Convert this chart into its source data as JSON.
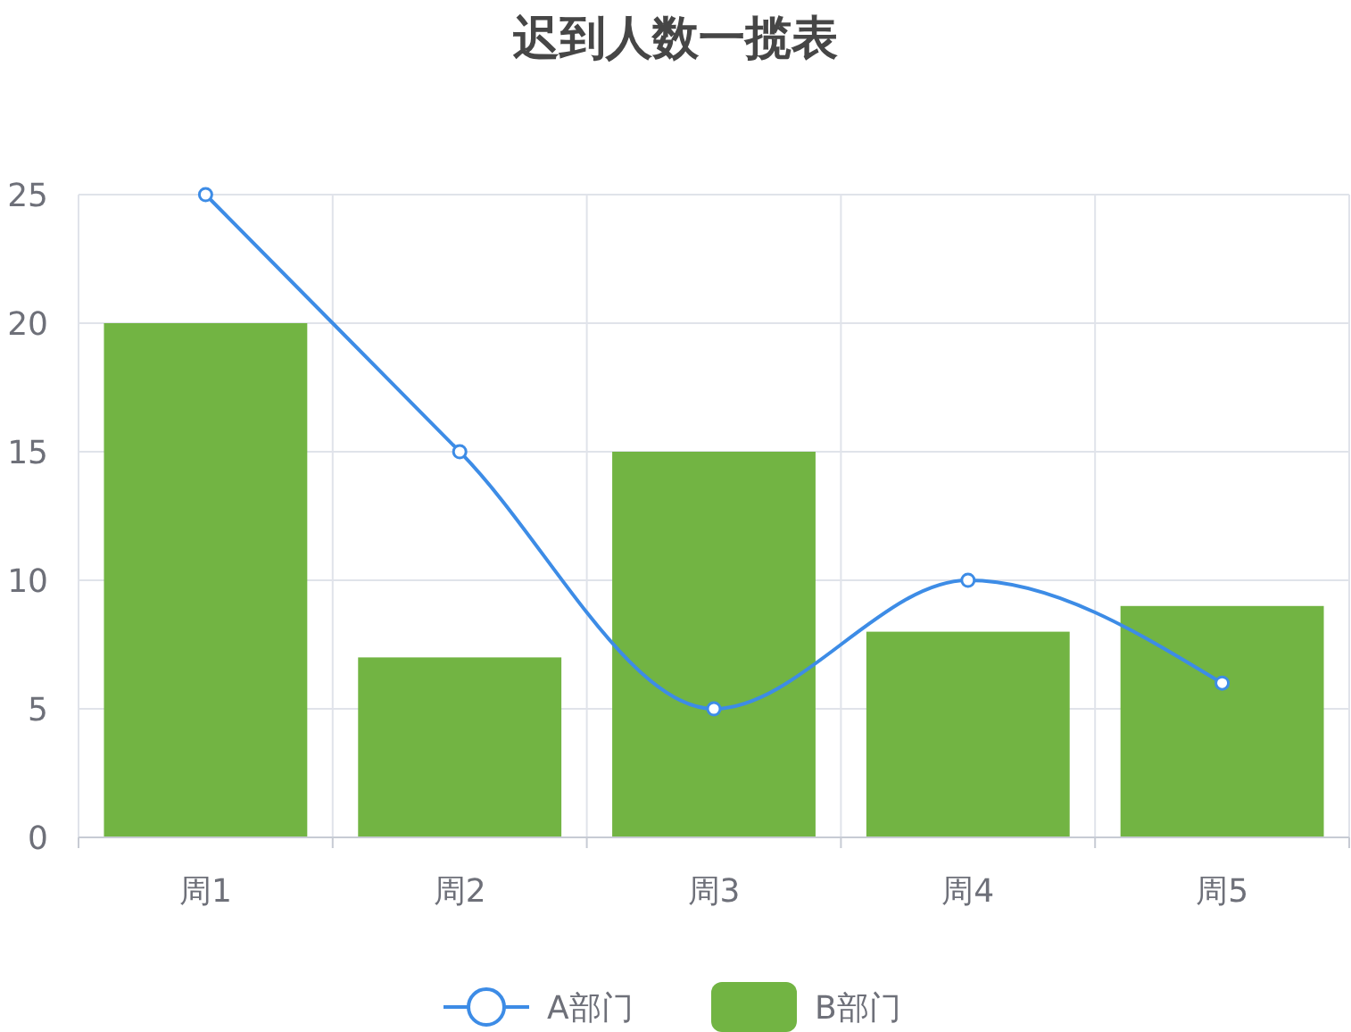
{
  "chart_data": {
    "type": "bar",
    "title": "迟到人数一揽表",
    "categories": [
      "周1",
      "周2",
      "周3",
      "周4",
      "周5"
    ],
    "series": [
      {
        "name": "A部门",
        "type": "line",
        "color": "#3d8ce6",
        "values": [
          25,
          15,
          5,
          10,
          6
        ]
      },
      {
        "name": "B部门",
        "color": "#72b443",
        "values": [
          20,
          7,
          15,
          8,
          9
        ]
      }
    ],
    "ylim": [
      0,
      25
    ],
    "yticks": [
      0,
      5,
      10,
      15,
      20,
      25
    ],
    "grid": true,
    "legend": "bottom",
    "marker": "circle",
    "line_style": "solid"
  }
}
